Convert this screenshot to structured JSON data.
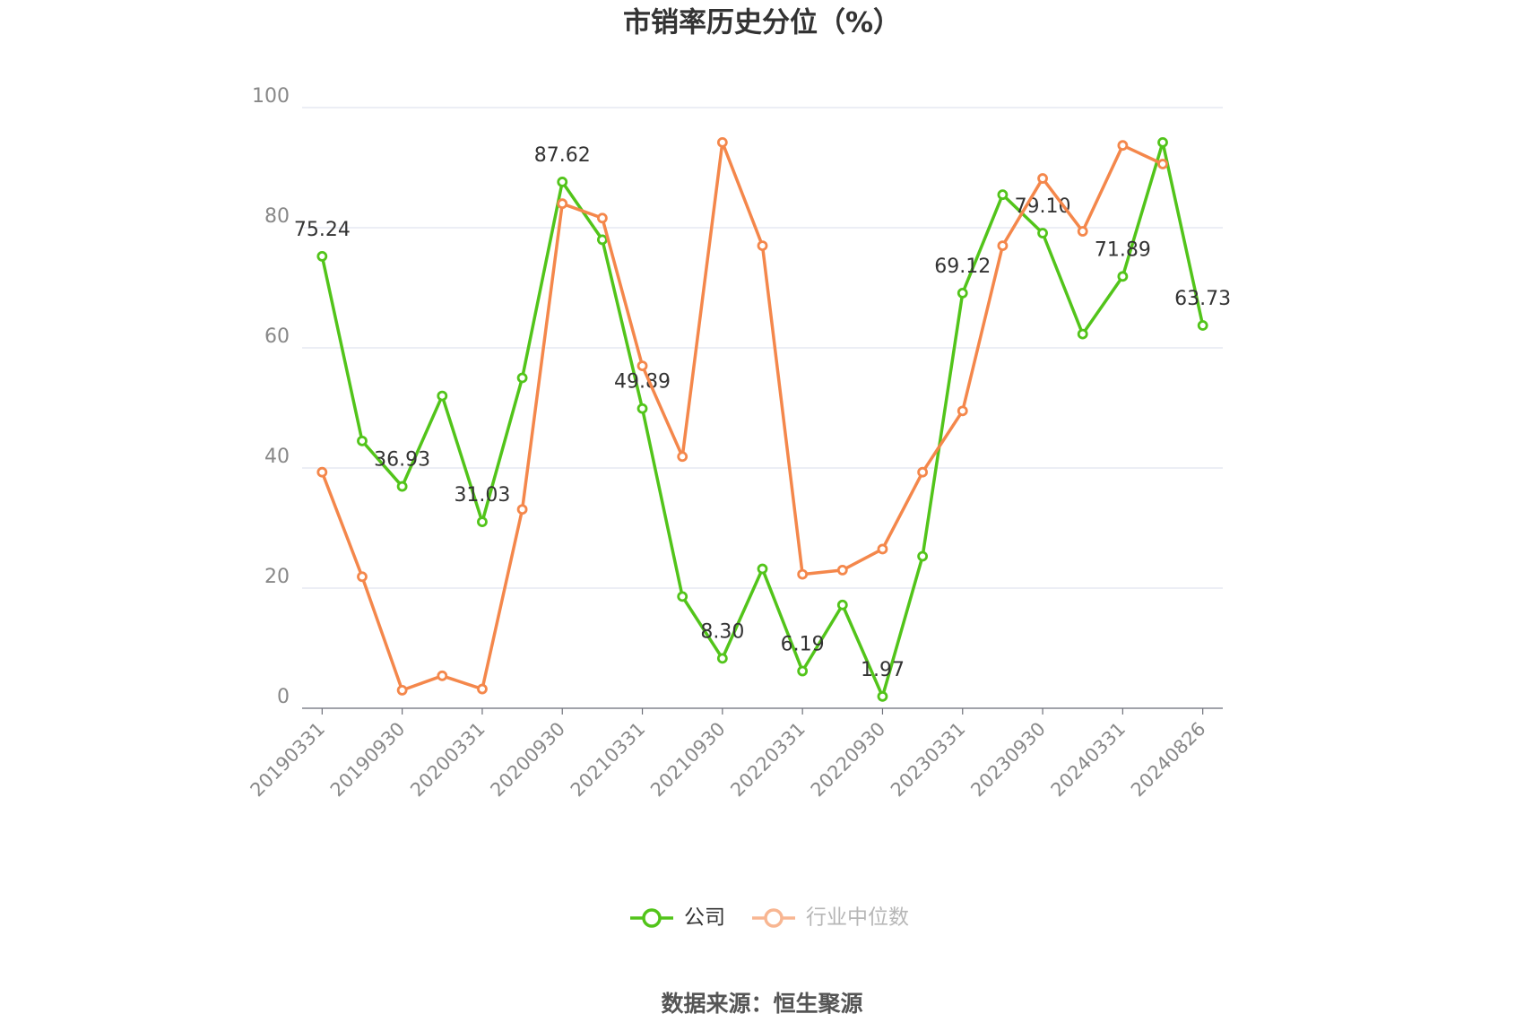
{
  "chart_data": {
    "type": "line",
    "title": "市销率历史分位（%）",
    "source": "数据来源：恒生聚源",
    "categories": [
      "20190331",
      null,
      "20190930",
      null,
      "20200331",
      null,
      "20200930",
      null,
      "20210331",
      null,
      "20210930",
      null,
      "20220331",
      null,
      "20220930",
      null,
      "20230331",
      null,
      "20230930",
      null,
      "20240331",
      null,
      "20240826"
    ],
    "series": [
      {
        "name": "公司",
        "color": "#52c41a",
        "values": [
          75.24,
          44.5,
          36.93,
          52.0,
          31.03,
          55.0,
          87.62,
          78.0,
          49.89,
          18.6,
          8.3,
          23.2,
          6.19,
          17.2,
          1.97,
          25.3,
          69.12,
          85.5,
          79.1,
          62.3,
          71.89,
          94.2,
          63.73
        ],
        "value_labels": [
          "75.24",
          null,
          "36.93",
          null,
          "31.03",
          null,
          "87.62",
          null,
          "49.89",
          null,
          "8.30",
          null,
          "6.19",
          null,
          "1.97",
          null,
          "69.12",
          null,
          "79.10",
          null,
          "71.89",
          null,
          "63.73"
        ]
      },
      {
        "name": "行业中位数",
        "color": "#f4874b",
        "values": [
          39.3,
          21.9,
          3.0,
          5.4,
          3.2,
          33.1,
          84.0,
          81.6,
          57.0,
          41.9,
          94.2,
          77.0,
          22.3,
          23.0,
          26.5,
          39.3,
          49.5,
          77.0,
          88.2,
          79.4,
          93.7,
          90.6,
          null
        ]
      }
    ],
    "ylim": [
      0,
      100
    ],
    "yticks": [
      0,
      20,
      40,
      60,
      80,
      100
    ],
    "grid": true
  }
}
